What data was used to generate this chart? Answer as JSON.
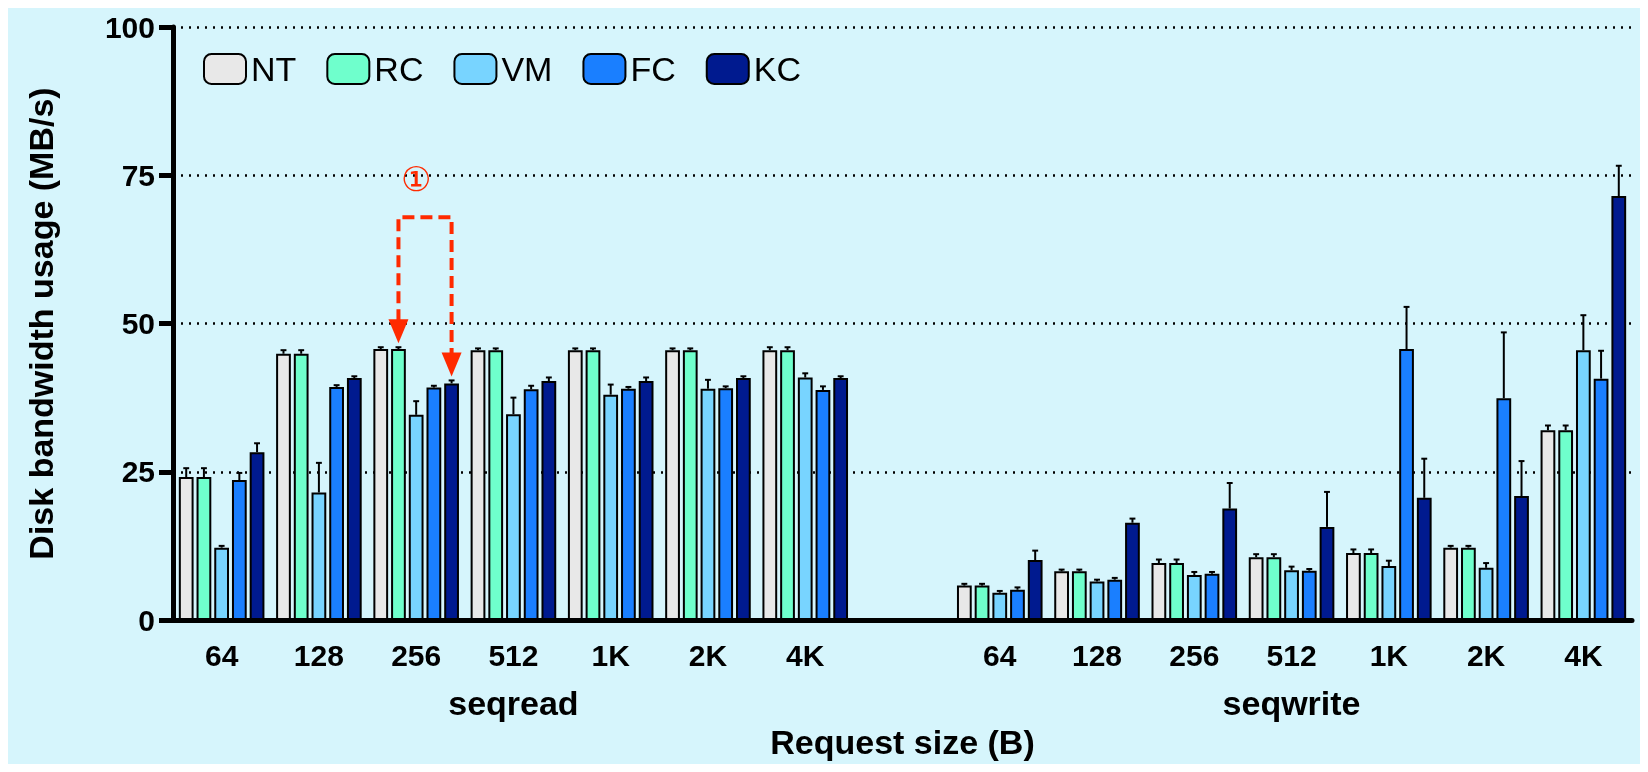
{
  "chart_data": {
    "type": "bar",
    "xlabel": "Request size (B)",
    "ylabel": "Disk bandwidth usage (MB/s)",
    "categories": [
      "64",
      "128",
      "256",
      "512",
      "1K",
      "2K",
      "4K",
      null,
      "64",
      "128",
      "256",
      "512",
      "1K",
      "2K",
      "4K"
    ],
    "series": [
      {
        "name": "NT",
        "color": "#e8e8e8",
        "values": [
          24.1,
          44.9,
          45.7,
          45.5,
          45.5,
          45.5,
          45.5,
          null,
          5.8,
          8.2,
          9.6,
          10.6,
          11.3,
          12.2,
          32.0
        ],
        "errors": [
          1.5,
          0.6,
          0.3,
          0.3,
          0.3,
          0.3,
          0.5,
          null,
          0.3,
          0.3,
          0.6,
          0.5,
          0.6,
          0.3,
          0.8
        ]
      },
      {
        "name": "RC",
        "color": "#6fffcc",
        "values": [
          24.1,
          44.9,
          45.7,
          45.5,
          45.5,
          45.5,
          45.5,
          null,
          5.8,
          8.2,
          9.6,
          10.6,
          11.3,
          12.2,
          32.0
        ],
        "errors": [
          1.5,
          0.6,
          0.3,
          0.3,
          0.3,
          0.3,
          0.5,
          null,
          0.3,
          0.3,
          0.6,
          0.5,
          0.6,
          0.3,
          0.8
        ]
      },
      {
        "name": "VM",
        "color": "#78d4ff",
        "values": [
          12.2,
          21.5,
          34.6,
          34.7,
          38.0,
          39.0,
          40.9,
          null,
          4.6,
          6.5,
          7.6,
          8.4,
          9.1,
          8.8,
          45.5
        ],
        "errors": [
          0.3,
          5.0,
          2.3,
          2.8,
          1.7,
          1.5,
          0.7,
          null,
          0.3,
          0.3,
          0.5,
          0.6,
          0.9,
          0.8,
          5.9
        ]
      },
      {
        "name": "FC",
        "color": "#1a7fff",
        "values": [
          23.6,
          39.3,
          39.2,
          38.9,
          39.0,
          39.1,
          38.8,
          null,
          5.1,
          6.8,
          7.8,
          8.3,
          45.7,
          37.4,
          40.7
        ],
        "errors": [
          1.2,
          0.3,
          0.3,
          0.6,
          0.3,
          0.3,
          0.6,
          null,
          0.4,
          0.3,
          0.3,
          0.3,
          7.1,
          11.1,
          4.7
        ]
      },
      {
        "name": "KC",
        "color": "#001a8f",
        "values": [
          28.3,
          40.8,
          39.9,
          40.3,
          40.3,
          40.8,
          40.8,
          null,
          10.1,
          16.4,
          18.8,
          15.7,
          20.6,
          20.9,
          71.5
        ],
        "errors": [
          1.5,
          0.3,
          0.5,
          0.6,
          0.6,
          0.3,
          0.3,
          null,
          1.6,
          0.7,
          4.3,
          5.9,
          6.6,
          5.9,
          5.1
        ]
      }
    ],
    "ylim": [
      0,
      100
    ],
    "yticks": [
      0,
      25,
      50,
      75,
      100
    ],
    "grid": "y",
    "legend": "top left",
    "annotations": [
      "seqread",
      "seqwrite",
      "①"
    ]
  }
}
